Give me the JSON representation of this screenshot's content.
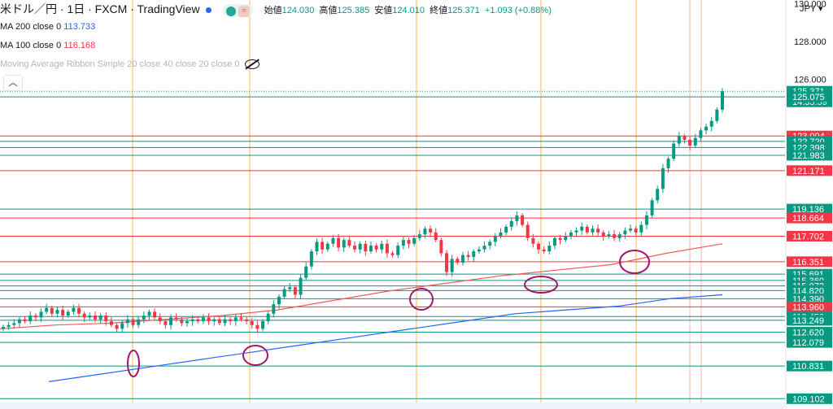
{
  "header": {
    "symbol": "米ドル／円 · 1日 · FXCM · TradingView",
    "open_label": "始値",
    "open": "124.030",
    "high_label": "高値",
    "high": "125.385",
    "low_label": "安値",
    "low": "124.010",
    "close_label": "終値",
    "close": "125.371",
    "change": "+1.093 (+0.88%)",
    "ribbon_icon": "≈"
  },
  "indicators": {
    "ma200_label": "MA 200 close 0",
    "ma200_value": "113.733",
    "ma100_label": "MA 100 close 0",
    "ma100_value": "116.168",
    "ribbon_label": "Moving Average Ribbon Simple 20 close 40 close 20 close 0"
  },
  "collapse_icon": "chevron-up-icon",
  "currency": "JPY ▾",
  "colors": {
    "bull": "#089981",
    "bear": "#f23645",
    "ma200": "#2962ff",
    "ma100": "#f05a5a",
    "green_level": "#089981",
    "red_level": "#f23645",
    "vline": "#ffb74d",
    "circle": "#a0166a"
  },
  "chart_data": {
    "type": "candlestick",
    "ylim": [
      108.9,
      130.2
    ],
    "axis_ticks": [
      130.0,
      128.0,
      126.0
    ],
    "axis_tick_labels": [
      "130.000",
      "128.000",
      "126.000"
    ],
    "current_price": 125.371,
    "countdown": "14:35:59",
    "price_labels": [
      {
        "value": 125.371,
        "label": "125.371",
        "color": "#089981"
      },
      {
        "value": 125.075,
        "label": "125.075",
        "color": "#089981"
      },
      {
        "value": 123.004,
        "label": "123.004",
        "color": "#f23645"
      },
      {
        "value": 122.72,
        "label": "122.720",
        "color": "#089981"
      },
      {
        "value": 122.398,
        "label": "122.398",
        "color": "#089981"
      },
      {
        "value": 121.983,
        "label": "121.983",
        "color": "#089981"
      },
      {
        "value": 121.171,
        "label": "121.171",
        "color": "#f23645"
      },
      {
        "value": 119.136,
        "label": "119.136",
        "color": "#089981"
      },
      {
        "value": 118.664,
        "label": "118.664",
        "color": "#f23645"
      },
      {
        "value": 117.702,
        "label": "117.702",
        "color": "#f23645"
      },
      {
        "value": 116.351,
        "label": "116.351",
        "color": "#f23645"
      },
      {
        "value": 115.691,
        "label": "115.691",
        "color": "#089981"
      },
      {
        "value": 115.36,
        "label": "115.360",
        "color": "#089981"
      },
      {
        "value": 115.072,
        "label": "115.072",
        "color": "#089981"
      },
      {
        "value": 114.82,
        "label": "114.820",
        "color": "#089981"
      },
      {
        "value": 114.39,
        "label": "114.390",
        "color": "#089981"
      },
      {
        "value": 113.96,
        "label": "113.960",
        "color": "#f23645"
      },
      {
        "value": 113.45,
        "label": "113.450",
        "color": "#089981"
      },
      {
        "value": 113.249,
        "label": "113.249",
        "color": "#089981"
      },
      {
        "value": 112.62,
        "label": "112.620",
        "color": "#089981"
      },
      {
        "value": 112.079,
        "label": "112.079",
        "color": "#089981"
      },
      {
        "value": 110.831,
        "label": "110.831",
        "color": "#089981"
      },
      {
        "value": 109.102,
        "label": "109.102",
        "color": "#089981"
      }
    ],
    "closes": [
      112.9,
      113.0,
      113.1,
      113.3,
      113.2,
      113.5,
      113.4,
      113.7,
      113.9,
      113.6,
      113.8,
      113.5,
      113.7,
      113.9,
      113.6,
      113.4,
      113.5,
      113.3,
      113.5,
      113.2,
      113.0,
      112.8,
      113.1,
      113.3,
      113.0,
      113.3,
      113.5,
      113.7,
      113.4,
      113.2,
      113.0,
      113.4,
      113.3,
      113.1,
      113.2,
      113.3,
      113.2,
      113.4,
      113.2,
      113.3,
      113.1,
      113.3,
      113.2,
      113.4,
      113.3,
      113.2,
      113.0,
      112.8,
      113.2,
      113.6,
      114.1,
      114.5,
      114.9,
      115.0,
      114.6,
      115.5,
      116.1,
      116.9,
      117.4,
      117.0,
      117.3,
      117.6,
      117.1,
      117.5,
      117.2,
      117.0,
      117.3,
      116.9,
      117.2,
      117.0,
      117.3,
      116.8,
      116.7,
      117.2,
      117.5,
      117.3,
      117.6,
      117.8,
      118.1,
      117.9,
      117.5,
      116.8,
      115.8,
      116.5,
      116.3,
      116.7,
      116.6,
      116.9,
      117.0,
      117.2,
      117.4,
      117.7,
      117.9,
      118.2,
      118.5,
      118.8,
      118.3,
      117.6,
      117.3,
      117.0,
      116.9,
      117.2,
      117.6,
      117.5,
      117.7,
      117.9,
      118.0,
      118.2,
      117.9,
      118.1,
      117.9,
      117.7,
      117.8,
      117.6,
      117.8,
      118.0,
      118.1,
      117.9,
      118.3,
      118.8,
      119.6,
      120.2,
      121.3,
      121.8,
      122.6,
      123.0,
      122.8,
      122.5,
      122.9,
      123.3,
      123.5,
      123.8,
      124.4,
      125.371
    ],
    "ma200": [
      110.0,
      110.4,
      110.8,
      111.2,
      111.6,
      112.0,
      112.4,
      112.8,
      113.2,
      113.6,
      113.8,
      114.0,
      114.4,
      114.6
    ],
    "ma100": [
      112.8,
      113.0,
      113.1,
      113.3,
      113.5,
      113.8,
      114.3,
      114.8,
      115.2,
      115.6,
      115.9,
      116.2,
      116.8,
      117.3
    ],
    "vertical_markers": 6
  }
}
